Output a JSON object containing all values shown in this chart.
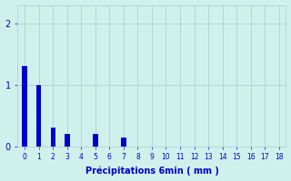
{
  "title": "",
  "xlabel": "Précipitations 6min ( mm )",
  "ylabel": "",
  "bar_color": "#0000cc",
  "background_color": "#d0f0ec",
  "grid_color": "#aacccc",
  "text_color": "#0000cc",
  "xlim": [
    -0.5,
    18.5
  ],
  "ylim": [
    0,
    2.3
  ],
  "yticks": [
    0,
    1,
    2
  ],
  "xtick_labels": [
    "0",
    "1",
    "2",
    "3",
    "4",
    "5",
    "6",
    "7",
    "8",
    "9",
    "10",
    "11",
    "12",
    "13",
    "14",
    "15",
    "16",
    "17",
    "18"
  ],
  "bar_positions": [
    0,
    1,
    2,
    3,
    5,
    7
  ],
  "bar_heights": [
    1.3,
    1.0,
    0.3,
    0.2,
    0.2,
    0.15
  ],
  "bar_width": 0.35
}
